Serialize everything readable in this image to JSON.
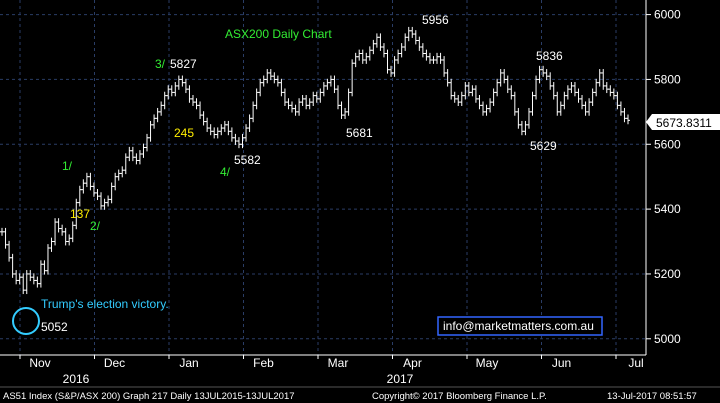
{
  "chart_data": {
    "type": "ohlc",
    "title": "ASX200 Daily Chart",
    "last_price_label": "5673.8311",
    "y_ticks": [
      5000,
      5200,
      5400,
      5600,
      5800,
      6000
    ],
    "ylim": [
      4950,
      6045
    ],
    "x_month_labels": [
      "Nov",
      "Dec",
      "Jan",
      "Feb",
      "Mar",
      "Apr",
      "May",
      "Jun",
      "Jul"
    ],
    "x_year_labels": [
      "2016",
      "2017"
    ],
    "grid": true,
    "closes": [
      5330,
      5290,
      5250,
      5200,
      5180,
      5190,
      5150,
      5200,
      5190,
      5180,
      5170,
      5230,
      5210,
      5280,
      5300,
      5360,
      5340,
      5330,
      5300,
      5310,
      5350,
      5420,
      5460,
      5480,
      5500,
      5470,
      5450,
      5440,
      5410,
      5420,
      5430,
      5470,
      5500,
      5510,
      5520,
      5560,
      5580,
      5560,
      5550,
      5570,
      5590,
      5620,
      5660,
      5680,
      5700,
      5720,
      5750,
      5770,
      5760,
      5780,
      5800,
      5790,
      5770,
      5740,
      5730,
      5720,
      5690,
      5670,
      5650,
      5640,
      5630,
      5640,
      5650,
      5660,
      5640,
      5620,
      5610,
      5600,
      5620,
      5650,
      5680,
      5720,
      5760,
      5790,
      5800,
      5820,
      5810,
      5800,
      5790,
      5760,
      5730,
      5720,
      5710,
      5700,
      5730,
      5740,
      5720,
      5730,
      5750,
      5740,
      5760,
      5780,
      5790,
      5800,
      5770,
      5720,
      5690,
      5700,
      5760,
      5850,
      5870,
      5880,
      5860,
      5870,
      5890,
      5910,
      5930,
      5900,
      5880,
      5830,
      5820,
      5860,
      5880,
      5900,
      5930,
      5950,
      5940,
      5920,
      5900,
      5880,
      5870,
      5860,
      5860,
      5870,
      5860,
      5820,
      5790,
      5750,
      5740,
      5730,
      5750,
      5780,
      5760,
      5770,
      5740,
      5720,
      5700,
      5710,
      5730,
      5760,
      5790,
      5820,
      5800,
      5770,
      5750,
      5700,
      5660,
      5640,
      5660,
      5700,
      5750,
      5800,
      5830,
      5820,
      5810,
      5780,
      5750,
      5700,
      5720,
      5750,
      5770,
      5780,
      5760,
      5740,
      5720,
      5700,
      5730,
      5760,
      5790,
      5820,
      5780,
      5770,
      5760,
      5750,
      5720,
      5700,
      5680,
      5673.8311
    ],
    "annotations": [
      {
        "text": "5052",
        "color": "#ffffff"
      },
      {
        "text": "Trump's election victory.",
        "color": "#33ccff"
      },
      {
        "text": "1/",
        "color": "#33ee33"
      },
      {
        "text": "137",
        "color": "#ffee00"
      },
      {
        "text": "2/",
        "color": "#33ee33"
      },
      {
        "text": "3/",
        "color": "#33ee33"
      },
      {
        "text": "5827",
        "color": "#ffffff"
      },
      {
        "text": "245",
        "color": "#ffee00"
      },
      {
        "text": "4/",
        "color": "#33ee33"
      },
      {
        "text": "5582",
        "color": "#ffffff"
      },
      {
        "text": "5681",
        "color": "#ffffff"
      },
      {
        "text": "5956",
        "color": "#ffffff"
      },
      {
        "text": "5836",
        "color": "#ffffff"
      },
      {
        "text": "5629",
        "color": "#ffffff"
      }
    ],
    "website": "info@marketmatters.com.au"
  },
  "footer": {
    "left": "AS51 Index (S&P/ASX 200) Graph 217  Daily 13JUL2015-13JUL2017",
    "center": "Copyright© 2017 Bloomberg Finance L.P.",
    "right": "13-Jul-2017 08:51:57"
  },
  "colors": {
    "background": "#000000",
    "price": "#ffffff",
    "grid": "#2a3d66",
    "title": "#33ee33",
    "website_border": "#3366ff",
    "circle": "#33ccff"
  }
}
